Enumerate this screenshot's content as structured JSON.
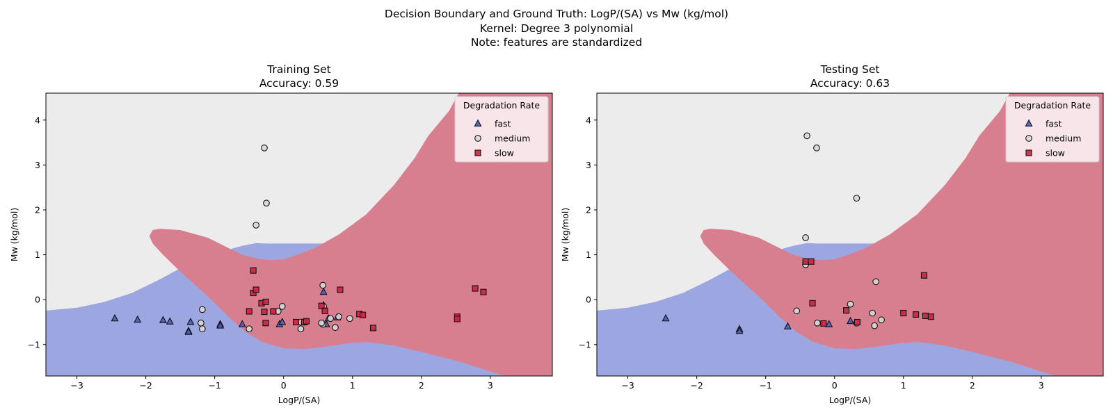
{
  "suptitle": {
    "line1": "Decision Boundary and Ground Truth: LogP/(SA) vs Mw (kg/mol)",
    "line2": "Kernel: Degree 3 polynomial",
    "line3": "Note: features are standardized"
  },
  "colors": {
    "fast": "#4a5bbf",
    "medium": "#d8d8d8",
    "slow": "#cf2141",
    "region_fast": "#9ca6e0",
    "region_medium": "#ececec",
    "region_slow": "#d87f8f"
  },
  "chart_data": [
    {
      "type": "scatter",
      "title": "Training Set",
      "subtitle": "Accuracy: 0.59",
      "xlabel": "LogP/(SA)",
      "ylabel": "Mw (kg/mol)",
      "xlim": [
        -3.45,
        3.9
      ],
      "ylim": [
        -1.7,
        4.6
      ],
      "xticks": [
        -3,
        -2,
        -1,
        0,
        1,
        2,
        3
      ],
      "yticks": [
        -1,
        0,
        1,
        2,
        3,
        4
      ],
      "legend": {
        "title": "Degradation Rate",
        "position": "top-right",
        "entries": [
          "fast",
          "medium",
          "slow"
        ]
      },
      "background_regions": [
        "fast",
        "medium",
        "slow"
      ],
      "series": [
        {
          "name": "fast",
          "marker": "triangle",
          "points": [
            [
              -2.45,
              -0.42
            ],
            [
              -2.12,
              -0.45
            ],
            [
              -1.75,
              -0.46
            ],
            [
              -1.65,
              -0.49
            ],
            [
              -1.35,
              -0.5
            ],
            [
              -1.38,
              -0.7
            ],
            [
              -1.38,
              -0.72
            ],
            [
              -0.92,
              -0.55
            ],
            [
              -0.92,
              -0.58
            ],
            [
              -0.6,
              -0.55
            ],
            [
              -0.06,
              -0.55
            ],
            [
              -0.02,
              -0.5
            ],
            [
              0.58,
              0.17
            ],
            [
              0.58,
              -0.13
            ],
            [
              0.62,
              -0.55
            ],
            [
              0.65,
              -0.42
            ],
            [
              0.78,
              -0.4
            ]
          ]
        },
        {
          "name": "medium",
          "marker": "circle",
          "points": [
            [
              -0.28,
              3.38
            ],
            [
              -0.25,
              2.15
            ],
            [
              -0.4,
              1.66
            ],
            [
              -1.18,
              -0.22
            ],
            [
              -1.2,
              -0.52
            ],
            [
              -1.18,
              -0.65
            ],
            [
              -0.5,
              -0.65
            ],
            [
              -0.08,
              -0.26
            ],
            [
              -0.02,
              -0.15
            ],
            [
              0.25,
              -0.65
            ],
            [
              0.25,
              -0.5
            ],
            [
              0.3,
              -0.5
            ],
            [
              0.57,
              0.32
            ],
            [
              0.57,
              -0.55
            ],
            [
              0.55,
              -0.52
            ],
            [
              0.58,
              -0.15
            ],
            [
              0.68,
              -0.42
            ],
            [
              0.75,
              -0.62
            ],
            [
              0.8,
              -0.38
            ],
            [
              0.96,
              -0.42
            ]
          ]
        },
        {
          "name": "slow",
          "marker": "square",
          "points": [
            [
              -0.44,
              0.65
            ],
            [
              -0.44,
              0.15
            ],
            [
              -0.4,
              0.22
            ],
            [
              -0.5,
              -0.26
            ],
            [
              -0.32,
              -0.08
            ],
            [
              -0.28,
              -0.27
            ],
            [
              -0.26,
              -0.05
            ],
            [
              -0.26,
              -0.52
            ],
            [
              -0.15,
              -0.26
            ],
            [
              0.18,
              -0.5
            ],
            [
              0.3,
              -0.5
            ],
            [
              0.33,
              -0.48
            ],
            [
              0.55,
              -0.14
            ],
            [
              0.6,
              -0.25
            ],
            [
              0.82,
              0.22
            ],
            [
              1.1,
              -0.32
            ],
            [
              1.15,
              -0.34
            ],
            [
              1.3,
              -0.63
            ],
            [
              2.52,
              -0.38
            ],
            [
              2.52,
              -0.43
            ],
            [
              2.78,
              0.25
            ],
            [
              2.9,
              0.17
            ]
          ]
        }
      ]
    },
    {
      "type": "scatter",
      "title": "Testing Set",
      "subtitle": "Accuracy: 0.63",
      "xlabel": "LogP/(SA)",
      "ylabel": "Mw (kg/mol)",
      "xlim": [
        -3.45,
        3.9
      ],
      "ylim": [
        -1.7,
        4.6
      ],
      "xticks": [
        -3,
        -2,
        -1,
        0,
        1,
        2,
        3
      ],
      "yticks": [
        -1,
        0,
        1,
        2,
        3,
        4
      ],
      "legend": {
        "title": "Degradation Rate",
        "position": "top-right",
        "entries": [
          "fast",
          "medium",
          "slow"
        ]
      },
      "background_regions": [
        "fast",
        "medium",
        "slow"
      ],
      "series": [
        {
          "name": "fast",
          "marker": "triangle",
          "points": [
            [
              -2.45,
              -0.42
            ],
            [
              -1.38,
              -0.66
            ],
            [
              -1.38,
              -0.7
            ],
            [
              -0.68,
              -0.6
            ],
            [
              -0.08,
              -0.55
            ],
            [
              0.23,
              -0.48
            ]
          ]
        },
        {
          "name": "medium",
          "marker": "circle",
          "points": [
            [
              -0.4,
              3.65
            ],
            [
              -0.26,
              3.38
            ],
            [
              0.32,
              2.26
            ],
            [
              -0.42,
              1.38
            ],
            [
              -0.42,
              0.78
            ],
            [
              -0.55,
              -0.25
            ],
            [
              -0.25,
              -0.52
            ],
            [
              0.23,
              -0.1
            ],
            [
              0.55,
              -0.3
            ],
            [
              0.58,
              -0.58
            ],
            [
              0.6,
              0.4
            ],
            [
              0.68,
              -0.45
            ],
            [
              0.32,
              -0.52
            ]
          ]
        },
        {
          "name": "slow",
          "marker": "square",
          "points": [
            [
              -0.42,
              0.85
            ],
            [
              -0.34,
              0.85
            ],
            [
              -0.32,
              -0.08
            ],
            [
              -0.16,
              -0.53
            ],
            [
              0.17,
              -0.24
            ],
            [
              0.33,
              -0.5
            ],
            [
              1.0,
              -0.3
            ],
            [
              1.18,
              -0.33
            ],
            [
              1.32,
              -0.36
            ],
            [
              1.4,
              -0.38
            ],
            [
              1.3,
              0.54
            ]
          ]
        }
      ]
    }
  ]
}
